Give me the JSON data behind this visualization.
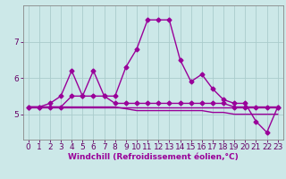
{
  "xlabel": "Windchill (Refroidissement éolien,°C)",
  "x": [
    0,
    1,
    2,
    3,
    4,
    5,
    6,
    7,
    8,
    9,
    10,
    11,
    12,
    13,
    14,
    15,
    16,
    17,
    18,
    19,
    20,
    21,
    22,
    23
  ],
  "series1": [
    5.2,
    5.2,
    5.3,
    5.5,
    6.2,
    5.5,
    6.2,
    5.5,
    5.5,
    6.3,
    6.8,
    7.6,
    7.6,
    7.6,
    6.5,
    5.9,
    6.1,
    5.7,
    5.4,
    5.3,
    5.3,
    4.8,
    4.5,
    5.2
  ],
  "series2": [
    5.2,
    5.2,
    5.2,
    5.2,
    5.5,
    5.5,
    5.5,
    5.5,
    5.3,
    5.3,
    5.3,
    5.3,
    5.3,
    5.3,
    5.3,
    5.3,
    5.3,
    5.3,
    5.3,
    5.2,
    5.2,
    5.2,
    5.2,
    5.2
  ],
  "series3": [
    5.2,
    5.2,
    5.2,
    5.2,
    5.2,
    5.2,
    5.2,
    5.2,
    5.2,
    5.15,
    5.1,
    5.1,
    5.1,
    5.1,
    5.1,
    5.1,
    5.1,
    5.05,
    5.05,
    5.0,
    5.0,
    5.0,
    5.0,
    5.0
  ],
  "series4": [
    5.2,
    5.2,
    5.2,
    5.2,
    5.2,
    5.2,
    5.2,
    5.2,
    5.2,
    5.2,
    5.2,
    5.2,
    5.2,
    5.2,
    5.2,
    5.2,
    5.2,
    5.2,
    5.2,
    5.2,
    5.2,
    5.2,
    5.2,
    5.2
  ],
  "line_color": "#990099",
  "bg_color": "#cce8e8",
  "grid_color": "#aacccc",
  "ylim": [
    4.3,
    8.0
  ],
  "yticks": [
    5,
    6,
    7
  ],
  "marker": "D",
  "marker_size": 2.5,
  "line_width": 1.0,
  "xlabel_fontsize": 6.5,
  "tick_fontsize": 6.5
}
